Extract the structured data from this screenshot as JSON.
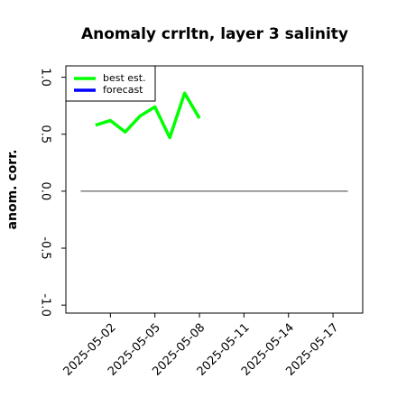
{
  "chart_data": {
    "type": "line",
    "title": "Anomaly crrltn, layer 3 salinity",
    "y_label": "anom. corr.",
    "x": [
      "2025-05-01",
      "2025-05-02",
      "2025-05-03",
      "2025-05-04",
      "2025-05-05",
      "2025-05-06",
      "2025-05-07",
      "2025-05-08"
    ],
    "series": [
      {
        "name": "best est.",
        "color": "#00ff00",
        "values": [
          0.58,
          0.62,
          0.52,
          0.66,
          0.74,
          0.47,
          0.86,
          0.64
        ]
      },
      {
        "name": "forecast",
        "color": "#0000ff",
        "values": [
          null,
          null,
          null,
          null,
          null,
          null,
          null,
          null
        ]
      }
    ],
    "xlim": [
      "2025-04-29",
      "2025-05-19"
    ],
    "xticks": [
      "2025-05-02",
      "2025-05-05",
      "2025-05-08",
      "2025-05-11",
      "2025-05-14",
      "2025-05-17"
    ],
    "highlight_xtick": {
      "tick": "2025-05-08",
      "color": "#228b22"
    },
    "ylim": [
      -1.07,
      1.1
    ],
    "yticks": [
      {
        "value": -1,
        "label": "-1.0"
      },
      -0.5,
      {
        "value": 0,
        "label": "0.0"
      },
      0.5,
      {
        "value": 1,
        "label": "1.0"
      }
    ],
    "hline": {
      "y": 0,
      "color": "#666666",
      "x": [
        "2025-04-30",
        "2025-05-18"
      ]
    },
    "legend": "upper left"
  }
}
